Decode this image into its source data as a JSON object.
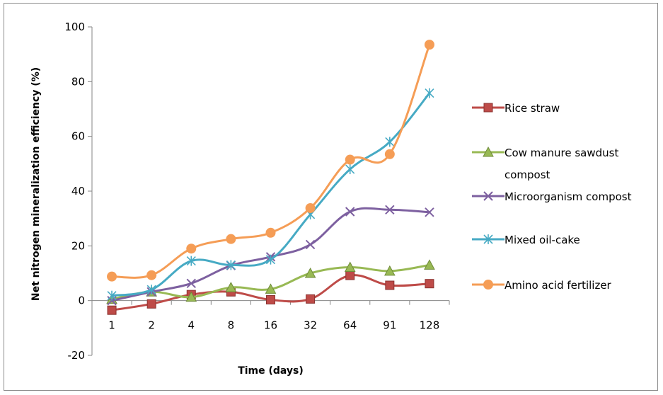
{
  "chart_data": {
    "type": "line",
    "title": "",
    "xlabel": "Time (days)",
    "ylabel": "Net nitrogen mineralization efficiency (%)",
    "categories": [
      "1",
      "2",
      "4",
      "8",
      "16",
      "32",
      "64",
      "91",
      "128"
    ],
    "ylim": [
      -20,
      100
    ],
    "yticks": [
      -20,
      0,
      20,
      40,
      60,
      80,
      100
    ],
    "grid": false,
    "legend_position": "right",
    "series": [
      {
        "name": "Rice straw",
        "color": "#be4b48",
        "marker": "square",
        "values": [
          -3.5,
          -1.2,
          2.2,
          3.2,
          0.3,
          0.6,
          9.2,
          5.6,
          6.2
        ]
      },
      {
        "name": "Cow manure sawdust compost",
        "legend_lines": [
          "Cow manure sawdust",
          "compost"
        ],
        "color": "#98b954",
        "marker": "triangle",
        "values": [
          0.5,
          3.2,
          1.3,
          4.8,
          4.2,
          10.0,
          12.2,
          10.8,
          13.0
        ]
      },
      {
        "name": "Microorganism compost",
        "color": "#7d60a0",
        "marker": "x",
        "values": [
          0.0,
          3.2,
          6.3,
          12.8,
          16.0,
          20.5,
          32.5,
          33.2,
          32.3
        ]
      },
      {
        "name": "Mixed oil-cake",
        "color": "#46aac4",
        "marker": "star",
        "values": [
          1.8,
          4.0,
          14.5,
          13.0,
          15.0,
          31.5,
          48.0,
          58.0,
          75.8
        ]
      },
      {
        "name": "Amino acid fertilizer",
        "color": "#f59d56",
        "marker": "circle",
        "values": [
          8.8,
          9.3,
          19.0,
          22.5,
          24.8,
          33.8,
          51.5,
          53.5,
          93.5
        ]
      }
    ]
  }
}
